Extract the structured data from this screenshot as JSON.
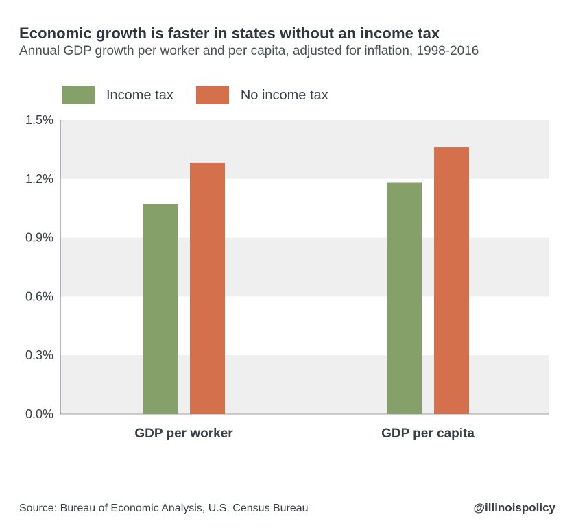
{
  "header": {
    "title": "Economic growth is faster in states without an income tax",
    "subtitle": "Annual GDP growth per worker and per capita, adjusted for inflation, 1998-2016"
  },
  "legend": [
    {
      "label": "Income tax",
      "color": "#85a068"
    },
    {
      "label": "No income tax",
      "color": "#d4704c"
    }
  ],
  "footer": {
    "source": "Source: Bureau of Economic Analysis, U.S. Census Bureau",
    "handle": "@illinoispolicy"
  },
  "chart_data": {
    "type": "bar",
    "categories": [
      "GDP per worker",
      "GDP per capita"
    ],
    "series": [
      {
        "name": "Income tax",
        "values": [
          1.07,
          1.18
        ],
        "color": "#85a068"
      },
      {
        "name": "No income tax",
        "values": [
          1.28,
          1.36
        ],
        "color": "#d4704c"
      }
    ],
    "ylim": [
      0,
      1.5
    ],
    "yticks": [
      0.0,
      0.3,
      0.6,
      0.9,
      1.2,
      1.5
    ],
    "ytick_labels": [
      "0.0%",
      "0.3%",
      "0.6%",
      "0.9%",
      "1.2%",
      "1.5%"
    ],
    "grid": "alternating-bands",
    "legend_position": "top-left"
  }
}
